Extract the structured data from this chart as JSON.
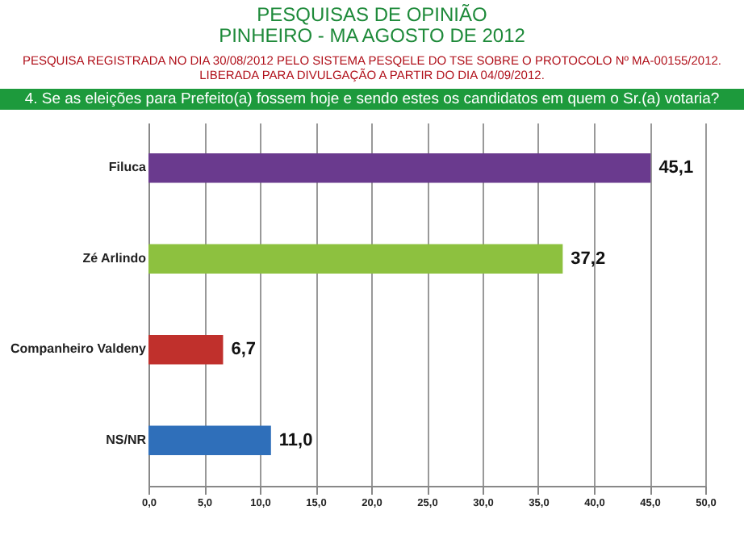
{
  "chart_data": {
    "type": "bar",
    "orientation": "horizontal",
    "title": "PESQUISAS DE OPINIÃO",
    "subtitle": "PINHEIRO - MA AGOSTO DE 2012",
    "annotations": [
      "PESQUISA REGISTRADA NO DIA 30/08/2012 PELO SISTEMA PESQELE DO TSE SOBRE O PROTOCOLO Nº MA-00155/2012.",
      "LIBERADA PARA DIVULGAÇÃO A PARTIR DO DIA 04/09/2012.",
      "4. Se as eleições para Prefeito(a) fossem hoje e sendo estes os candidatos em quem o Sr.(a) votaria?"
    ],
    "categories": [
      "Filuca",
      "Zé Arlindo",
      "Companheiro Valdeny",
      "NS/NR"
    ],
    "values": [
      45.1,
      37.2,
      6.7,
      11.0
    ],
    "value_labels": [
      "45,1",
      "37,2",
      "6,7",
      "11,0"
    ],
    "colors": [
      "#6a3a8e",
      "#8dc13f",
      "#c0302c",
      "#2f6fba"
    ],
    "xlim": [
      0,
      50
    ],
    "xticks": [
      {
        "value": 0,
        "label": "0,0"
      },
      {
        "value": 5,
        "label": "5,0"
      },
      {
        "value": 10,
        "label": "10,0"
      },
      {
        "value": 15,
        "label": "15,0"
      },
      {
        "value": 20,
        "label": "20,0"
      },
      {
        "value": 25,
        "label": "25,0"
      },
      {
        "value": 30,
        "label": "30,0"
      },
      {
        "value": 35,
        "label": "35,0"
      },
      {
        "value": 40,
        "label": "40,0"
      },
      {
        "value": 45,
        "label": "45,0"
      },
      {
        "value": 50,
        "label": "50,0"
      }
    ],
    "grid": "x"
  }
}
